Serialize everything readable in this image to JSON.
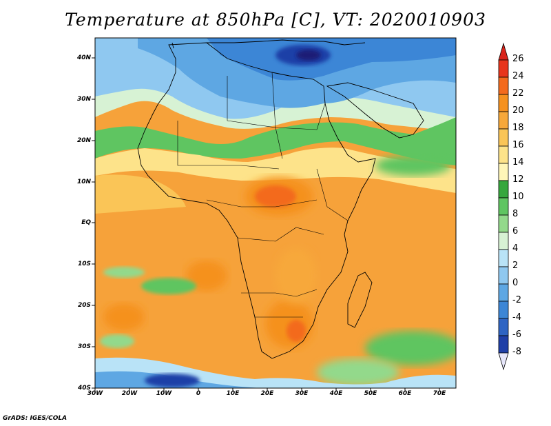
{
  "title": "Temperature at 850hPa [C], VT: 2020010903",
  "credit": "GrADS: IGES/COLA",
  "lat_labels": [
    "40N",
    "30N",
    "20N",
    "10N",
    "EQ",
    "10S",
    "20S",
    "30S",
    "40S"
  ],
  "lon_labels": [
    "30W",
    "20W",
    "10W",
    "0",
    "10E",
    "20E",
    "30E",
    "40E",
    "50E",
    "60E",
    "70E"
  ],
  "colorbar": {
    "labels": [
      "26",
      "24",
      "22",
      "20",
      "18",
      "16",
      "14",
      "12",
      "10",
      "8",
      "6",
      "4",
      "2",
      "0",
      "-2",
      "-4",
      "-6",
      "-8"
    ],
    "colors": [
      "#e8351c",
      "#f36a1d",
      "#f5911f",
      "#f7a83a",
      "#fac557",
      "#fde38a",
      "#fff6b8",
      "#36a73d",
      "#5fc561",
      "#93d98b",
      "#d7f2d4",
      "#b9e3f7",
      "#8fc8f0",
      "#5ea7e3",
      "#3c86d6",
      "#2e64c3",
      "#1f3fa7",
      "#1a1f76"
    ]
  },
  "map_extent": {
    "lon": [
      -30,
      75
    ],
    "lat": [
      -40,
      45
    ]
  },
  "colors": {
    "ocean_base": "#f5a43c",
    "frame": "#000000"
  }
}
